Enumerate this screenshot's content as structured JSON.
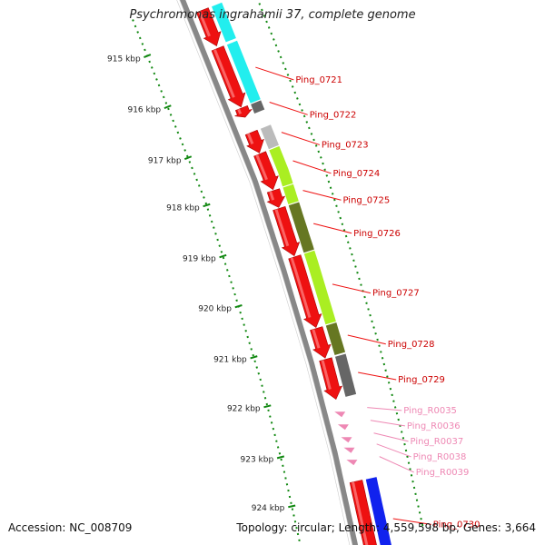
{
  "title": "Psychromonas ingrahamii 37, complete genome",
  "footer": {
    "accession": "Accession: NC_008709",
    "topology": "Topology: circular; Length: 4,559,598 bp; Genes: 3,664"
  },
  "colors": {
    "cds": "#ee1111",
    "rna": "#ee88b4",
    "backbone": "#888888",
    "ruler": "#118811",
    "cog_cyan": "#22eeee",
    "cog_gray_dark": "#666666",
    "cog_gray_light": "#bbbbbb",
    "cog_lime": "#aaee22",
    "cog_olive": "#667722",
    "cog_blue": "#1122ee"
  },
  "ruler": {
    "ticks": [
      {
        "label": "915 kbp",
        "kb": 915
      },
      {
        "label": "916 kbp",
        "kb": 916
      },
      {
        "label": "917 kbp",
        "kb": 917
      },
      {
        "label": "918 kbp",
        "kb": 918
      },
      {
        "label": "919 kbp",
        "kb": 919
      },
      {
        "label": "920 kbp",
        "kb": 920
      },
      {
        "label": "921 kbp",
        "kb": 921
      },
      {
        "label": "922 kbp",
        "kb": 922
      },
      {
        "label": "923 kbp",
        "kb": 923
      },
      {
        "label": "924 kbp",
        "kb": 924
      }
    ]
  },
  "features": [
    {
      "label": "",
      "type": "CDS",
      "start_kb": 914.6,
      "end_kb": 915.3,
      "strand": "-",
      "cog": "cog_cyan"
    },
    {
      "label": "Ping_0721",
      "type": "CDS",
      "start_kb": 915.35,
      "end_kb": 916.5,
      "strand": "-",
      "cog": "cog_cyan"
    },
    {
      "label": "Ping_0722",
      "type": "CDS",
      "start_kb": 916.52,
      "end_kb": 916.7,
      "strand": "-",
      "cog": "cog_gray_dark"
    },
    {
      "label": "Ping_0723",
      "type": "CDS",
      "start_kb": 917.0,
      "end_kb": 917.4,
      "strand": "-",
      "cog": "cog_gray_light"
    },
    {
      "label": "Ping_0724",
      "type": "CDS",
      "start_kb": 917.42,
      "end_kb": 918.1,
      "strand": "-",
      "cog": "cog_lime"
    },
    {
      "label": "Ping_0725",
      "type": "CDS",
      "start_kb": 918.12,
      "end_kb": 918.45,
      "strand": "-",
      "cog": "cog_lime"
    },
    {
      "label": "Ping_0726",
      "type": "CDS",
      "start_kb": 918.47,
      "end_kb": 919.4,
      "strand": "-",
      "cog": "cog_olive"
    },
    {
      "label": "Ping_0727",
      "type": "CDS",
      "start_kb": 919.42,
      "end_kb": 920.8,
      "strand": "-",
      "cog": "cog_lime"
    },
    {
      "label": "Ping_0728",
      "type": "CDS",
      "start_kb": 920.82,
      "end_kb": 921.4,
      "strand": "-",
      "cog": "cog_olive"
    },
    {
      "label": "Ping_0729",
      "type": "CDS",
      "start_kb": 921.42,
      "end_kb": 922.2,
      "strand": "-",
      "cog": "cog_gray_dark"
    },
    {
      "label": "Ping_R0035",
      "type": "tRNA",
      "start_kb": 922.45,
      "end_kb": 922.55,
      "strand": "-"
    },
    {
      "label": "Ping_R0036",
      "type": "tRNA",
      "start_kb": 922.7,
      "end_kb": 922.8,
      "strand": "-"
    },
    {
      "label": "Ping_R0037",
      "type": "tRNA",
      "start_kb": 922.95,
      "end_kb": 923.05,
      "strand": "-"
    },
    {
      "label": "Ping_R0038",
      "type": "tRNA",
      "start_kb": 923.15,
      "end_kb": 923.25,
      "strand": "-"
    },
    {
      "label": "Ping_R0039",
      "type": "tRNA",
      "start_kb": 923.38,
      "end_kb": 923.48,
      "strand": "-"
    },
    {
      "label": "Ping_0730",
      "type": "CDS",
      "start_kb": 923.8,
      "end_kb": 925.5,
      "strand": "-",
      "cog": "cog_blue"
    }
  ]
}
